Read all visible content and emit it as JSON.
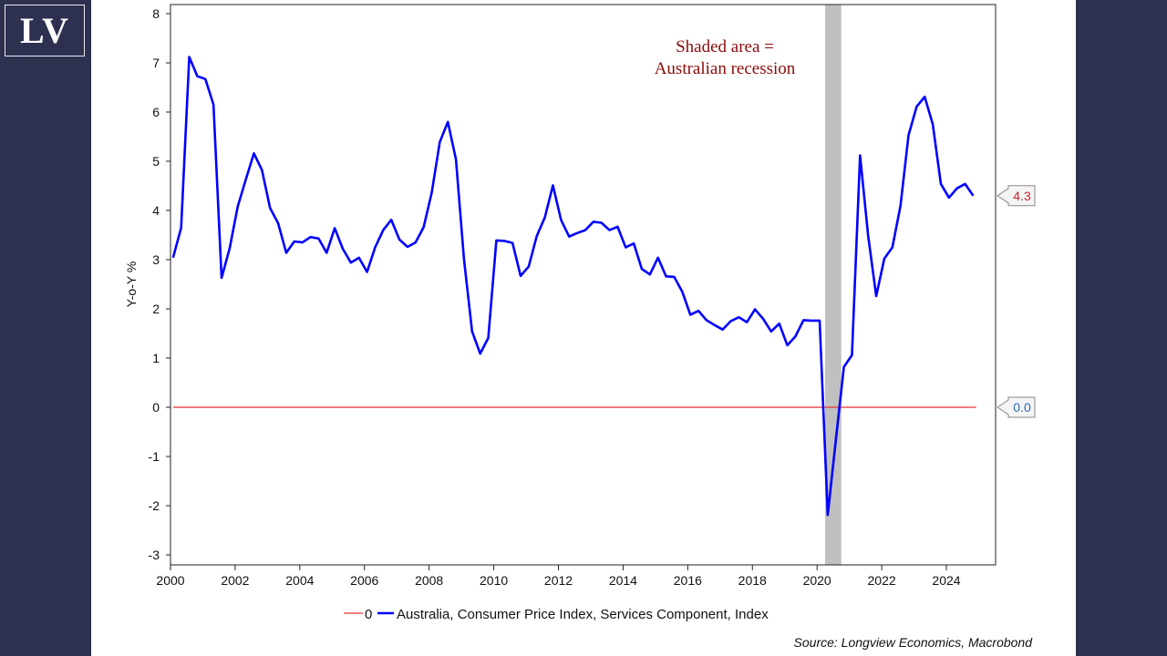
{
  "logo": {
    "text": "LV"
  },
  "colors": {
    "background": "#2e3050",
    "series": "#0000ff",
    "zero_line": "#e83030",
    "recession": "#c0c0c0",
    "annotation": "#8b0a0a",
    "badge_latest": "#c0282d",
    "badge_zero": "#2a6ac0"
  },
  "chart_data": {
    "type": "line",
    "title": "",
    "xlabel": "",
    "ylabel": "Y-o-Y %",
    "ylim": [
      -3,
      8
    ],
    "xlim": [
      2000,
      2025
    ],
    "yticks": [
      "8",
      "7",
      "6",
      "5",
      "4",
      "3",
      "2",
      "1",
      "0",
      "-1",
      "-2",
      "-3"
    ],
    "xticks": [
      "2000",
      "2002",
      "2004",
      "2006",
      "2008",
      "2010",
      "2012",
      "2014",
      "2016",
      "2018",
      "2020",
      "2022",
      "2024"
    ],
    "grid": false,
    "frequency": "quarterly",
    "start": "2000Q1",
    "series": [
      {
        "name": "Australia, Consumer Price Index, Services Component, Index",
        "color": "#0000ff",
        "values": [
          3.04,
          3.65,
          7.12,
          6.73,
          6.67,
          6.15,
          2.63,
          3.23,
          4.08,
          4.63,
          5.16,
          4.82,
          4.05,
          3.74,
          3.14,
          3.37,
          3.35,
          3.46,
          3.43,
          3.14,
          3.64,
          3.22,
          2.94,
          3.04,
          2.75,
          3.25,
          3.6,
          3.81,
          3.41,
          3.26,
          3.35,
          3.66,
          4.36,
          5.39,
          5.8,
          5.04,
          3.0,
          1.54,
          1.09,
          1.41,
          3.39,
          3.38,
          3.34,
          2.67,
          2.86,
          3.48,
          3.86,
          4.51,
          3.81,
          3.47,
          3.54,
          3.6,
          3.77,
          3.75,
          3.6,
          3.67,
          3.25,
          3.33,
          2.81,
          2.7,
          3.04,
          2.66,
          2.65,
          2.35,
          1.88,
          1.96,
          1.77,
          1.67,
          1.58,
          1.75,
          1.83,
          1.73,
          1.99,
          1.8,
          1.54,
          1.7,
          1.26,
          1.44,
          1.77,
          1.76,
          1.76,
          -2.19,
          -0.67,
          0.82,
          1.06,
          5.12,
          3.49,
          2.26,
          3.02,
          3.25,
          4.09,
          5.53,
          6.11,
          6.31,
          5.75,
          4.54,
          4.26,
          4.45,
          4.54,
          4.3
        ]
      },
      {
        "name": "0",
        "color": "#e83030",
        "constant": 0
      }
    ],
    "shaded_periods": [
      {
        "from": 2020.25,
        "to": 2020.75,
        "label": "Australian recession"
      }
    ],
    "annotation": [
      "Shaded area =",
      "Australian recession"
    ],
    "end_labels": [
      "4.3",
      "0.0"
    ],
    "legend": {
      "placement": "bottom",
      "entries": [
        "0",
        "Australia, Consumer Price Index, Services Component, Index"
      ]
    },
    "source": "Source: Longview Economics, Macrobond"
  }
}
